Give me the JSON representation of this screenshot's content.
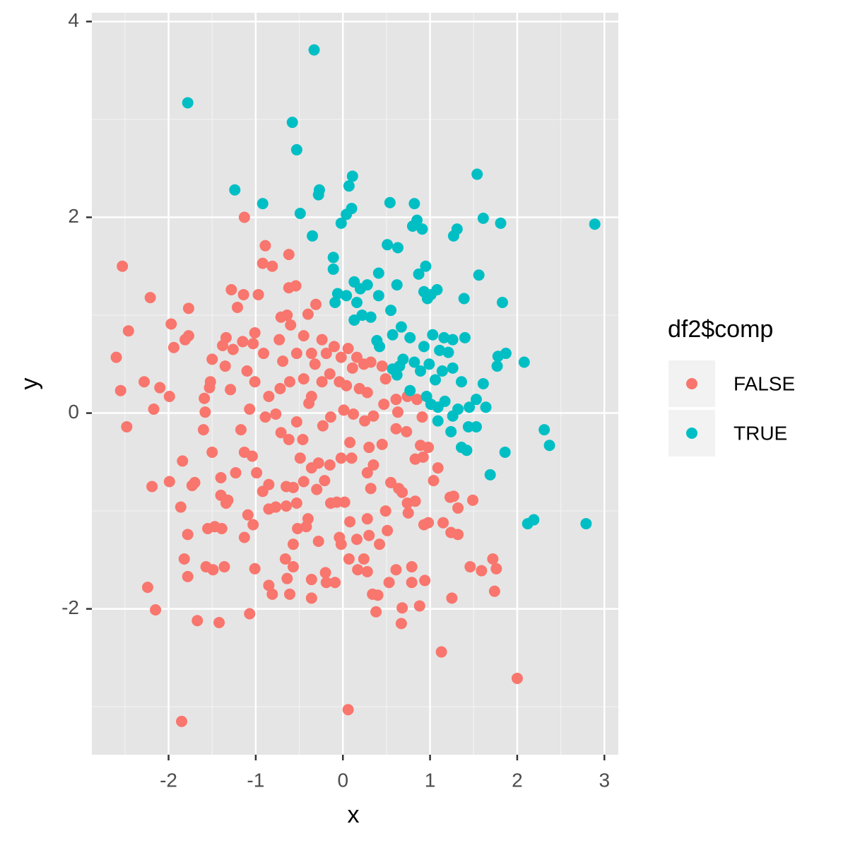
{
  "chart_data": {
    "type": "scatter",
    "x_label": "x",
    "y_label": "y",
    "legend_title": "df2$comp",
    "xlim": [
      -2.88,
      3.16
    ],
    "ylim": [
      -3.49,
      4.09
    ],
    "xticks": [
      -2,
      -1,
      0,
      1,
      2,
      3
    ],
    "yticks": [
      -2,
      0,
      2,
      4
    ],
    "xminor": [
      -2.5,
      -1.5,
      -0.5,
      0.5,
      1.5,
      2.5
    ],
    "yminor": [
      -3,
      -1,
      1,
      3
    ],
    "grid": true,
    "legend": "right",
    "series": [
      {
        "name": "FALSE",
        "color": "#F8766D",
        "x": [
          -1.13,
          -2.53,
          -0.89,
          -0.62,
          -0.92,
          -0.81,
          -2.21,
          -2.46,
          -1.77,
          -1.28,
          -1.14,
          -0.97,
          -1.21,
          -0.62,
          -0.54,
          -0.31,
          -0.4,
          -0.71,
          -0.64,
          -0.6,
          -1.97,
          -1.77,
          -1.81,
          -1.94,
          -2.6,
          -2.55,
          -2.28,
          -2.1,
          -1.99,
          -2.17,
          -2.48,
          -1.34,
          -1.38,
          -1.15,
          -1.03,
          -1.01,
          -1.26,
          -1.35,
          -1.5,
          -1.52,
          -1.53,
          -1.59,
          -1.58,
          -1.6,
          -1.5,
          -1.29,
          -1.1,
          -1.07,
          -0.91,
          -0.85,
          -0.89,
          -1.17,
          -1.13,
          -1.04,
          -1.23,
          -0.99,
          -1.4,
          -1.4,
          -1.32,
          -1.34,
          -1.84,
          -2.19,
          -1.99,
          -1.73,
          -1.7,
          -1.86,
          -1.78,
          -1.55,
          -1.47,
          -1.39,
          -1.09,
          -1.03,
          -1.13,
          -1.82,
          -1.78,
          -1.57,
          -1.49,
          -1.36,
          -2.24,
          -2.15,
          -1.67,
          -1.42,
          -1.07,
          -1.01,
          -1.85,
          -0.85,
          -0.81,
          -0.66,
          -0.61,
          -0.57,
          -0.64,
          -0.36,
          -0.36,
          -0.2,
          -0.19,
          -0.09,
          0.06,
          0.07,
          0.17,
          0.28,
          0.34,
          0.4,
          0.38,
          0.68,
          0.67,
          0.61,
          0.53,
          0.79,
          0.79,
          0.88,
          0.94,
          1.13,
          2.0,
          1.25,
          1.46,
          1.59,
          1.72,
          1.76,
          1.74,
          1.32,
          1.24,
          1.15,
          0.98,
          0.93,
          1.32,
          1.23,
          1.27,
          1.49,
          1.04,
          1.09,
          0.83,
          0.75,
          0.74,
          0.49,
          0.51,
          0.28,
          0.3,
          0.42,
          0.24,
          0.16,
          -0.04,
          -0.02,
          0.08,
          -0.07,
          0.02,
          -0.14,
          -0.28,
          -0.42,
          -0.4,
          -0.52,
          -0.57,
          -0.53,
          -0.65,
          -0.77,
          -0.85,
          -0.85,
          -0.92,
          -0.65,
          -0.57,
          -0.45,
          -0.3,
          -0.21,
          0.32,
          0.55,
          0.64,
          0.68,
          0.83,
          0.92,
          0.89,
          0.98,
          0.73,
          0.61,
          0.45,
          0.3,
          0.35,
          0.28,
          0.1,
          0.08,
          -0.02,
          -0.15,
          -0.28,
          -0.36,
          -0.49,
          -0.46,
          -0.62,
          -0.71,
          -0.77,
          -0.53,
          -0.39,
          -0.23,
          -0.14,
          0.01,
          0.12,
          0.25,
          0.35,
          0.47,
          0.61,
          0.74,
          0.85,
          0.91,
          0.63,
          0.28,
          0.19,
          0.04,
          -0.04,
          -0.15,
          -0.24,
          -0.36,
          -0.45,
          -0.61,
          -0.72,
          -1.01,
          -0.69,
          -0.53,
          -0.73,
          -0.45,
          -0.24,
          -0.1,
          0.06,
          0.16,
          0.24,
          0.32,
          0.45,
          0.49,
          0.11,
          -0.02,
          -0.19,
          -0.36,
          -0.32
        ],
        "values": [
          2.0,
          1.5,
          1.71,
          1.62,
          1.53,
          1.5,
          1.18,
          0.84,
          1.07,
          1.26,
          1.21,
          1.21,
          1.08,
          1.28,
          1.3,
          1.11,
          1.01,
          0.98,
          1.0,
          0.9,
          0.91,
          0.79,
          0.75,
          0.67,
          0.57,
          0.23,
          0.32,
          0.26,
          0.17,
          0.04,
          -0.14,
          0.77,
          0.69,
          0.73,
          0.71,
          0.82,
          0.65,
          0.48,
          0.55,
          0.32,
          0.26,
          0.15,
          0.01,
          -0.17,
          -0.4,
          0.24,
          0.43,
          0.04,
          0.61,
          0.17,
          -0.04,
          -0.17,
          -0.4,
          -0.44,
          -0.61,
          -0.61,
          -0.66,
          -0.84,
          -0.89,
          -0.92,
          -0.49,
          -0.75,
          -0.7,
          -0.74,
          -0.71,
          -0.96,
          -1.24,
          -1.18,
          -1.16,
          -1.18,
          -1.04,
          -1.14,
          -1.27,
          -1.49,
          -1.67,
          -1.57,
          -1.6,
          -1.57,
          -1.78,
          -2.01,
          -2.12,
          -2.14,
          -2.05,
          -1.59,
          -3.15,
          -1.76,
          -1.85,
          -1.49,
          -1.85,
          -1.57,
          -1.69,
          -1.7,
          -1.89,
          -1.63,
          -1.73,
          -1.73,
          -3.03,
          -1.49,
          -1.6,
          -1.62,
          -1.85,
          -1.86,
          -2.03,
          -1.99,
          -2.15,
          -1.6,
          -1.73,
          -1.57,
          -1.73,
          -1.97,
          -1.71,
          -2.44,
          -2.71,
          -1.89,
          -1.57,
          -1.61,
          -1.49,
          -1.59,
          -1.82,
          -1.24,
          -1.22,
          -1.12,
          -1.12,
          -1.14,
          -0.97,
          -0.86,
          -0.85,
          -0.89,
          -0.69,
          -0.56,
          -0.9,
          -1.02,
          -0.92,
          -1.0,
          -1.2,
          -1.08,
          -1.25,
          -1.34,
          -1.49,
          -1.29,
          -1.27,
          -1.34,
          -1.11,
          -0.91,
          -0.91,
          -0.92,
          -1.31,
          -1.16,
          -1.08,
          -1.18,
          -1.34,
          -0.92,
          -0.95,
          -0.96,
          -0.98,
          -0.73,
          -0.8,
          -0.75,
          -0.76,
          -0.7,
          -0.78,
          -0.69,
          -0.77,
          -0.71,
          -0.77,
          -0.81,
          -0.47,
          -0.45,
          -0.33,
          -0.35,
          -0.19,
          -0.16,
          -0.32,
          -0.35,
          -0.53,
          -0.61,
          -0.46,
          -0.3,
          -0.46,
          -0.53,
          -0.51,
          -0.56,
          -0.46,
          -0.27,
          -0.27,
          -0.2,
          -0.01,
          -0.09,
          0.1,
          -0.13,
          -0.04,
          0.03,
          -0.01,
          -0.08,
          -0.03,
          0.09,
          0.14,
          0.17,
          0.14,
          -0.04,
          0.01,
          0.21,
          0.25,
          0.28,
          0.32,
          0.4,
          0.32,
          0.17,
          0.35,
          0.32,
          0.25,
          0.32,
          0.53,
          0.61,
          0.75,
          0.79,
          0.75,
          0.68,
          0.66,
          0.57,
          0.5,
          0.52,
          0.48,
          0.35,
          0.46,
          0.57,
          0.61,
          0.61,
          0.5
        ]
      },
      {
        "name": "TRUE",
        "color": "#00BFC4",
        "x": [
          -0.33,
          -1.78,
          -0.58,
          -0.53,
          -1.24,
          -0.92,
          -0.49,
          -0.27,
          -0.28,
          0.11,
          0.07,
          0.1,
          0.04,
          -0.02,
          -0.35,
          0.54,
          0.82,
          0.85,
          0.8,
          0.91,
          1.54,
          1.61,
          1.81,
          2.89,
          1.31,
          1.27,
          0.51,
          0.63,
          -0.11,
          -0.11,
          0.41,
          0.95,
          0.87,
          1.56,
          0.13,
          0.28,
          0.2,
          0.62,
          0.93,
          1.08,
          1.01,
          0.97,
          -0.06,
          0.04,
          -0.09,
          0.16,
          0.41,
          1.39,
          1.83,
          0.55,
          0.22,
          0.32,
          0.13,
          0.67,
          0.57,
          0.77,
          0.39,
          0.42,
          1.03,
          1.16,
          1.26,
          1.4,
          0.93,
          1.11,
          1.21,
          0.69,
          0.82,
          0.99,
          0.65,
          0.57,
          0.62,
          0.89,
          1.14,
          1.06,
          1.26,
          1.36,
          1.61,
          1.77,
          1.87,
          1.78,
          2.08,
          0.77,
          0.96,
          1.01,
          1.09,
          1.17,
          1.32,
          1.26,
          1.09,
          1.45,
          1.53,
          1.64,
          1.44,
          1.53,
          1.24,
          1.36,
          1.42,
          2.31,
          2.37,
          1.86,
          1.69,
          2.12,
          2.19,
          2.79
        ],
        "values": [
          3.71,
          3.17,
          2.97,
          2.69,
          2.28,
          2.14,
          2.04,
          2.28,
          2.23,
          2.42,
          2.32,
          2.09,
          2.03,
          1.94,
          1.81,
          2.15,
          2.14,
          1.97,
          1.91,
          1.88,
          2.44,
          1.99,
          1.94,
          1.93,
          1.88,
          1.81,
          1.72,
          1.69,
          1.59,
          1.47,
          1.43,
          1.5,
          1.42,
          1.41,
          1.34,
          1.31,
          1.27,
          1.31,
          1.24,
          1.26,
          1.21,
          1.17,
          1.22,
          1.2,
          1.13,
          1.13,
          1.2,
          1.17,
          1.13,
          1.05,
          1.0,
          0.98,
          0.95,
          0.88,
          0.8,
          0.77,
          0.74,
          0.68,
          0.8,
          0.77,
          0.75,
          0.77,
          0.68,
          0.64,
          0.62,
          0.55,
          0.52,
          0.5,
          0.48,
          0.45,
          0.39,
          0.43,
          0.43,
          0.34,
          0.46,
          0.32,
          0.3,
          0.48,
          0.61,
          0.58,
          0.52,
          0.23,
          0.17,
          0.09,
          0.06,
          0.12,
          0.04,
          -0.03,
          -0.08,
          0.06,
          0.14,
          0.06,
          -0.14,
          -0.14,
          -0.19,
          -0.35,
          -0.38,
          -0.17,
          -0.33,
          -0.4,
          -0.63,
          -1.13,
          -1.09,
          -1.13
        ]
      }
    ]
  }
}
